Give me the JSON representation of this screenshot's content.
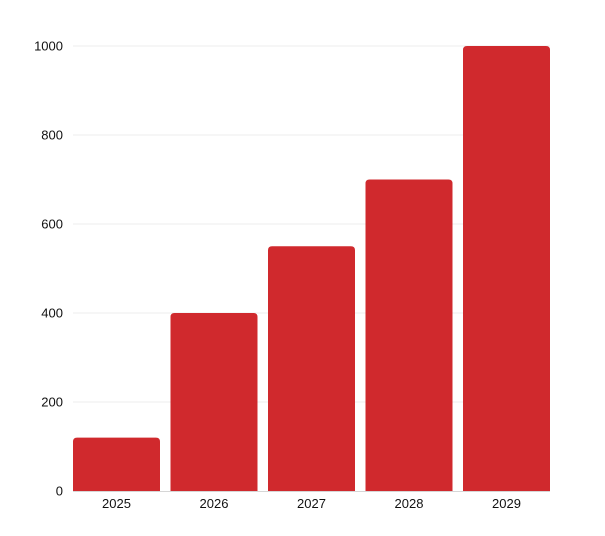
{
  "chart_data": {
    "type": "bar",
    "categories": [
      "2025",
      "2026",
      "2027",
      "2028",
      "2029"
    ],
    "values": [
      120,
      400,
      550,
      700,
      1000
    ],
    "ylim": [
      0,
      1000
    ],
    "yticks": [
      "0",
      "200",
      "400",
      "600",
      "800",
      "1000"
    ],
    "grid": true,
    "bar_color": "#d0292d",
    "title": "",
    "xlabel": "",
    "ylabel": ""
  }
}
